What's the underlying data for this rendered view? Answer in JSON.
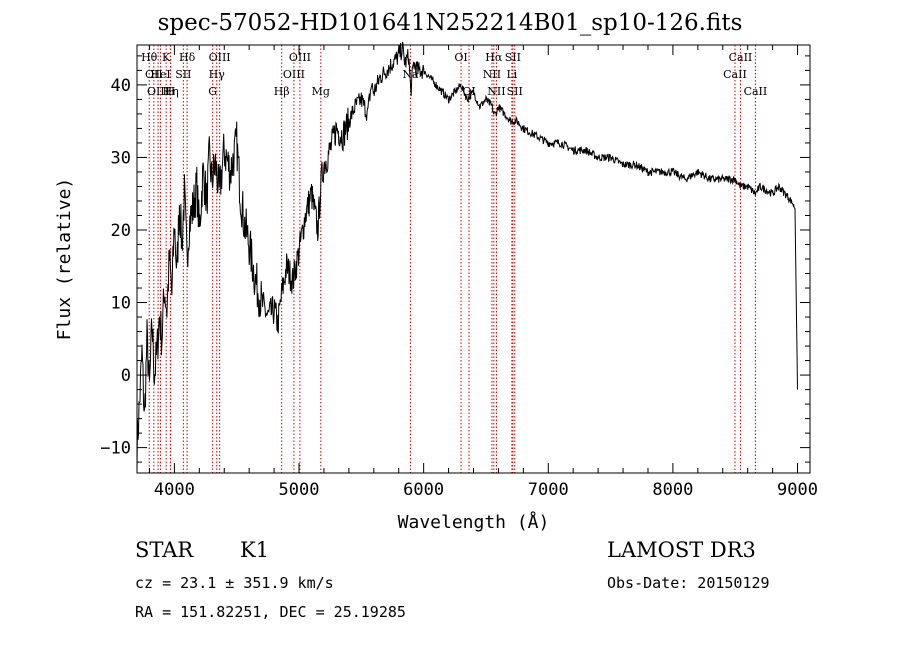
{
  "title": "spec-57052-HD101641N252214B01_sp10-126.fits",
  "info": {
    "object_class": "STAR",
    "subclass": "K1",
    "survey": "LAMOST DR3",
    "cz_line": "cz = 23.1 ± 351.9 km/s",
    "obs_date_line": "Obs-Date: 20150129",
    "radec_line": "RA = 151.82251, DEC =  25.19285"
  },
  "colors": {
    "spectrum": "#000000",
    "line_markers": "#cc0000",
    "axes": "#000000"
  },
  "chart_data": {
    "type": "line",
    "title": "spec-57052-HD101641N252214B01_sp10-126.fits",
    "xlabel": "Wavelength (Å)",
    "ylabel": "Flux (relative)",
    "xlim": [
      3700,
      9100
    ],
    "ylim": [
      -13.5,
      45.5
    ],
    "xticks": [
      4000,
      5000,
      6000,
      7000,
      8000,
      9000
    ],
    "yticks": [
      -10,
      0,
      10,
      20,
      30,
      40
    ],
    "series": [
      {
        "name": "flux",
        "x": [
          3700,
          3720,
          3740,
          3760,
          3780,
          3800,
          3820,
          3840,
          3860,
          3880,
          3900,
          3920,
          3940,
          3960,
          3980,
          4000,
          4020,
          4040,
          4060,
          4080,
          4100,
          4120,
          4150,
          4180,
          4200,
          4230,
          4260,
          4280,
          4300,
          4330,
          4360,
          4400,
          4450,
          4500,
          4530,
          4560,
          4600,
          4650,
          4700,
          4750,
          4800,
          4830,
          4860,
          4900,
          4950,
          5000,
          5050,
          5100,
          5150,
          5180,
          5200,
          5250,
          5300,
          5350,
          5400,
          5450,
          5500,
          5550,
          5580,
          5600,
          5650,
          5700,
          5750,
          5800,
          5830,
          5850,
          5880,
          5890,
          5896,
          5920,
          5950,
          6000,
          6050,
          6100,
          6150,
          6200,
          6250,
          6300,
          6350,
          6400,
          6450,
          6500,
          6550,
          6563,
          6580,
          6600,
          6650,
          6700,
          6750,
          6800,
          6900,
          7000,
          7100,
          7200,
          7300,
          7400,
          7500,
          7600,
          7700,
          7800,
          7900,
          8000,
          8100,
          8200,
          8300,
          8400,
          8500,
          8542,
          8600,
          8662,
          8700,
          8800,
          8850,
          8900,
          8950,
          8980,
          9000
        ],
        "y": [
          -10,
          -4,
          3,
          -6,
          5,
          -2,
          7,
          0,
          3,
          8,
          5,
          12,
          9,
          16,
          11,
          21,
          14,
          24,
          18,
          25,
          16,
          21,
          23,
          26,
          20,
          28,
          24,
          30,
          27,
          29,
          25,
          31,
          28,
          32,
          25,
          21,
          18,
          13,
          10,
          8,
          9,
          7,
          11,
          15,
          13,
          17,
          22,
          25,
          20,
          27,
          29,
          31,
          34,
          33,
          35,
          37,
          38,
          36,
          40,
          39,
          41,
          42,
          43,
          44,
          45,
          43,
          44,
          41,
          39,
          43,
          42,
          42,
          41,
          40,
          39,
          38,
          39,
          40,
          38,
          39,
          37,
          38,
          37,
          36,
          36,
          37,
          36,
          35,
          35,
          34,
          33,
          32,
          32,
          31,
          31,
          30,
          30,
          29,
          29,
          28,
          28,
          28,
          27,
          28,
          27,
          27,
          27,
          26,
          26,
          25,
          26,
          25,
          26,
          25,
          24,
          23,
          -2
        ]
      }
    ],
    "line_markers": [
      {
        "wavelength": 3798,
        "row": 1,
        "label": "Hθ"
      },
      {
        "wavelength": 3835,
        "row": 2,
        "label": "OII"
      },
      {
        "wavelength": 3869,
        "row": 3,
        "label": "OIII"
      },
      {
        "wavelength": 3889,
        "row": 2,
        "label": "HeI"
      },
      {
        "wavelength": 3934,
        "row": 1,
        "label": "K"
      },
      {
        "wavelength": 3970,
        "row": 3,
        "label": "Hη"
      },
      {
        "wavelength": 3968,
        "row": 3,
        "label": "H"
      },
      {
        "wavelength": 4072,
        "row": 2,
        "label": "SII"
      },
      {
        "wavelength": 4102,
        "row": 1,
        "label": "Hδ"
      },
      {
        "wavelength": 4307,
        "row": 3,
        "label": "G"
      },
      {
        "wavelength": 4340,
        "row": 2,
        "label": "Hγ"
      },
      {
        "wavelength": 4363,
        "row": 1,
        "label": "OIII"
      },
      {
        "wavelength": 4861,
        "row": 3,
        "label": "Hβ"
      },
      {
        "wavelength": 4959,
        "row": 2,
        "label": "OIII"
      },
      {
        "wavelength": 5007,
        "row": 1,
        "label": "OIII"
      },
      {
        "wavelength": 5175,
        "row": 3,
        "label": "Mg"
      },
      {
        "wavelength": 5894,
        "row": 2,
        "label": "Na"
      },
      {
        "wavelength": 6300,
        "row": 1,
        "label": "OI"
      },
      {
        "wavelength": 6364,
        "row": 3,
        "label": "OI"
      },
      {
        "wavelength": 6548,
        "row": 2,
        "label": "NII"
      },
      {
        "wavelength": 6563,
        "row": 1,
        "label": "Hα"
      },
      {
        "wavelength": 6584,
        "row": 3,
        "label": "NII"
      },
      {
        "wavelength": 6708,
        "row": 2,
        "label": "Li"
      },
      {
        "wavelength": 6716,
        "row": 1,
        "label": "SII"
      },
      {
        "wavelength": 6731,
        "row": 3,
        "label": "SII"
      },
      {
        "wavelength": 8498,
        "row": 2,
        "label": "CaII"
      },
      {
        "wavelength": 8542,
        "row": 1,
        "label": "CaII"
      },
      {
        "wavelength": 8662,
        "row": 3,
        "label": "CaII"
      }
    ]
  }
}
